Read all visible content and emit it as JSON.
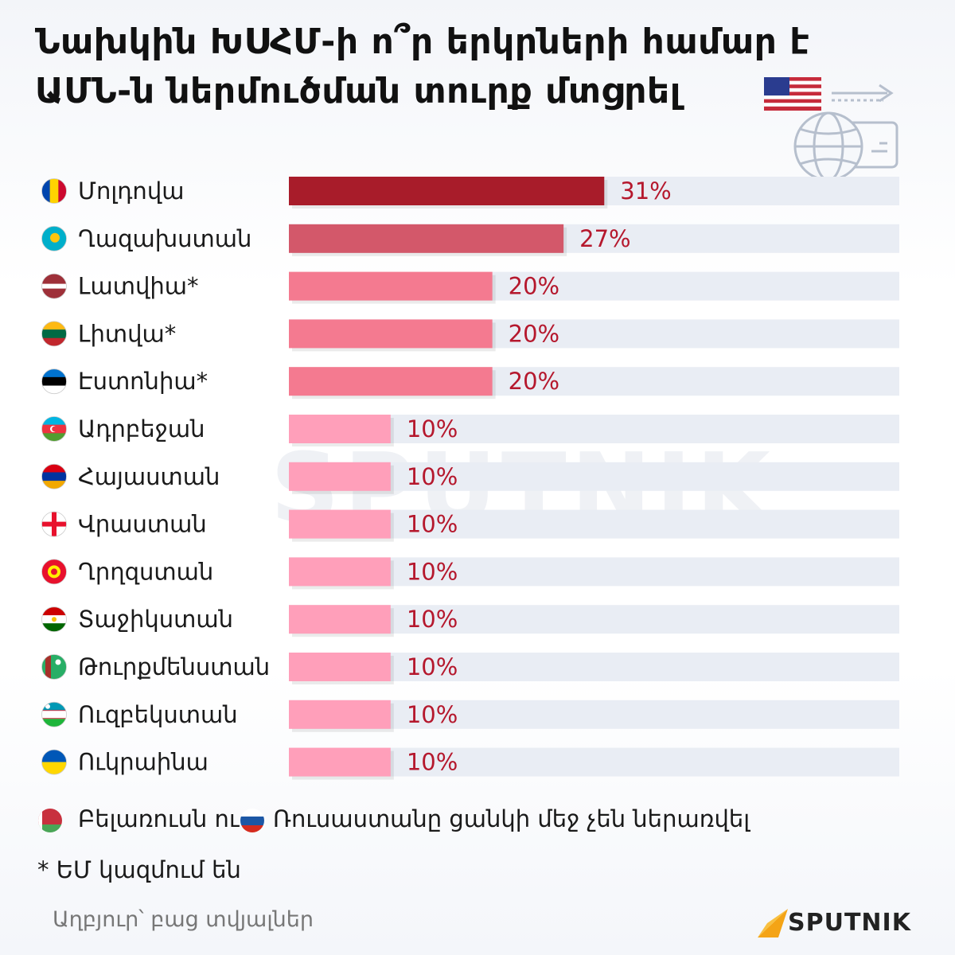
{
  "title_lines": [
    "Նախկին ԽՍՀՄ-ի ո՞ր երկրների համար է",
    "ԱՄՆ-ն ներմուծման տուրք մտցրել"
  ],
  "chart_data": {
    "type": "bar",
    "orientation": "horizontal",
    "categories": [
      "Մոլդովա",
      "Ղազախստան",
      "Լատվիա*",
      "Լիտվա*",
      "Էստոնիա*",
      "Ադրբեջան",
      "Հայաստան",
      "Վրաստան",
      "Ղրղզստան",
      "Տաջիկստան",
      "Թուրքմենստան",
      "Ուզբեկստան",
      "Ուկրաինա"
    ],
    "values": [
      31,
      27,
      20,
      20,
      20,
      10,
      10,
      10,
      10,
      10,
      10,
      10,
      10
    ],
    "value_labels": [
      "31%",
      "27%",
      "20%",
      "20%",
      "20%",
      "10%",
      "10%",
      "10%",
      "10%",
      "10%",
      "10%",
      "10%",
      "10%"
    ],
    "xlim": [
      0,
      60
    ],
    "grid": false,
    "colors": {
      "31": "#a81c2a",
      "27": "#d3586a",
      "20": "#f47a90",
      "10": "#ff9fba",
      "track": "#e9edf4",
      "value_text": "#b5182d"
    }
  },
  "flags": [
    "moldova-flag-icon",
    "kazakhstan-flag-icon",
    "latvia-flag-icon",
    "lithuania-flag-icon",
    "estonia-flag-icon",
    "azerbaijan-flag-icon",
    "armenia-flag-icon",
    "georgia-flag-icon",
    "kyrgyzstan-flag-icon",
    "tajikistan-flag-icon",
    "turkmenistan-flag-icon",
    "uzbekistan-flag-icon",
    "ukraine-flag-icon"
  ],
  "notes": {
    "not_included_part1": "Բելառուսն ու",
    "not_included_part2": "Ռուսաստանը ցանկի մեջ չեն ներառվել",
    "eu_note": "* ԵՄ կազմում են"
  },
  "source": "Աղբյուր՝  բաց տվյալներ",
  "watermark": "SPUTNIK",
  "logo_text": "SPUTNIK",
  "brand_color": "#f4a416"
}
